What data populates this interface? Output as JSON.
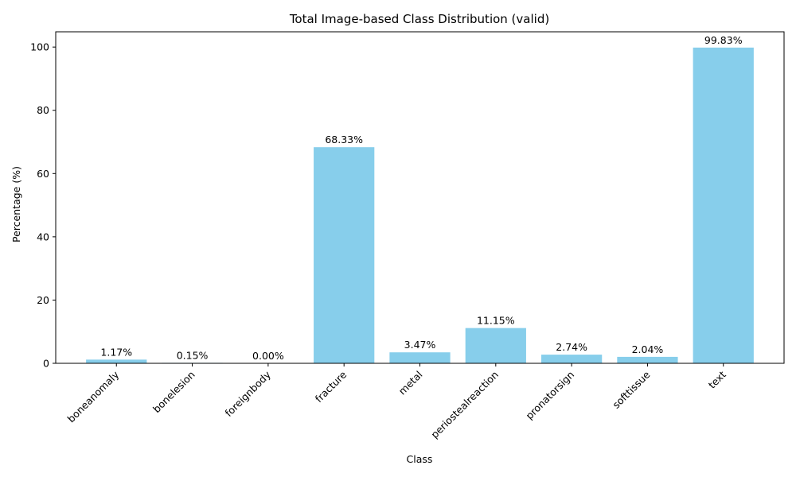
{
  "chart_data": {
    "type": "bar",
    "title": "Total Image-based Class Distribution (valid)",
    "xlabel": "Class",
    "ylabel": "Percentage (%)",
    "categories": [
      "boneanomaly",
      "bonelesion",
      "foreignbody",
      "fracture",
      "metal",
      "periostealreaction",
      "pronatorsign",
      "softtissue",
      "text"
    ],
    "values": [
      1.17,
      0.15,
      0.0,
      68.33,
      3.47,
      11.15,
      2.74,
      2.04,
      99.83
    ],
    "value_labels": [
      "1.17%",
      "0.15%",
      "0.00%",
      "68.33%",
      "3.47%",
      "11.15%",
      "2.74%",
      "2.04%",
      "99.83%"
    ],
    "yticks": [
      "0",
      "20",
      "40",
      "60",
      "80",
      "100"
    ],
    "ylim": [
      0,
      104.82
    ],
    "grid": false,
    "bar_color": "#87ceeb"
  }
}
